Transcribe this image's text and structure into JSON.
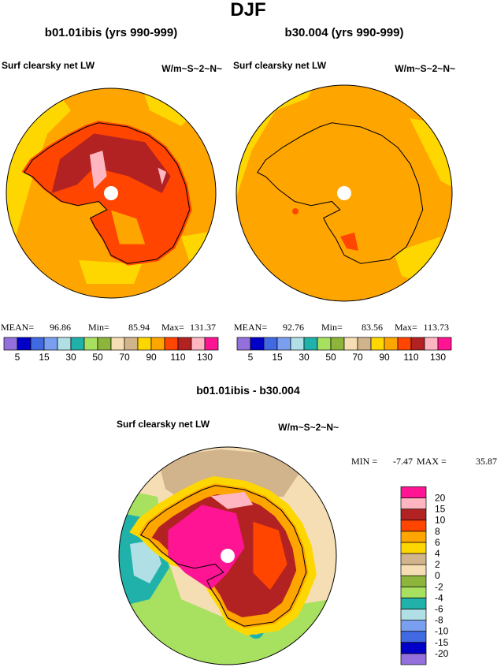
{
  "title": "DJF",
  "panels": [
    {
      "title": "b01.01ibis (yrs 990-999)",
      "variable": "Surf clearsky net LW",
      "units": "W/m~S~2~N~",
      "stats": {
        "mean_label": "MEAN=",
        "mean": 96.86,
        "min_label": "Min=",
        "min": 85.94,
        "max_label": "Max=",
        "max": 131.37
      }
    },
    {
      "title": "b30.004 (yrs 990-999)",
      "variable": "Surf clearsky net LW",
      "units": "W/m~S~2~N~",
      "stats": {
        "mean_label": "MEAN=",
        "mean": 92.76,
        "min_label": "Min=",
        "min": 83.56,
        "max_label": "Max=",
        "max": 113.73
      }
    }
  ],
  "colorbar": {
    "colors": [
      "#9370db",
      "#0000c8",
      "#4169e1",
      "#7b9ff0",
      "#b0e0e6",
      "#20b2aa",
      "#a8e060",
      "#8db53c",
      "#f5deb3",
      "#d2b48c",
      "#ffd700",
      "#ffa500",
      "#ff4500",
      "#b22222",
      "#ffb6c1",
      "#ff1493"
    ],
    "labels": [
      5,
      15,
      30,
      50,
      70,
      90,
      110,
      130
    ]
  },
  "difference": {
    "title": "b01.01ibis - b30.004",
    "variable": "Surf clearsky net LW",
    "units": "W/m~S~2~N~",
    "stats": {
      "min_label": "MIN =",
      "min": -7.47,
      "max_label": "MAX =",
      "max": 35.87
    },
    "colorbar": {
      "colors": [
        "#9370db",
        "#0000c8",
        "#4169e1",
        "#7b9ff0",
        "#b0e0e6",
        "#20b2aa",
        "#a8e060",
        "#8db53c",
        "#f5deb3",
        "#d2b48c",
        "#ffd700",
        "#ffa500",
        "#ff4500",
        "#b22222",
        "#ffb6c1",
        "#ff1493"
      ],
      "labels": [
        -20,
        -15,
        -10,
        -8,
        -6,
        -4,
        -2,
        0,
        2,
        4,
        6,
        8,
        10,
        15,
        20
      ]
    }
  }
}
